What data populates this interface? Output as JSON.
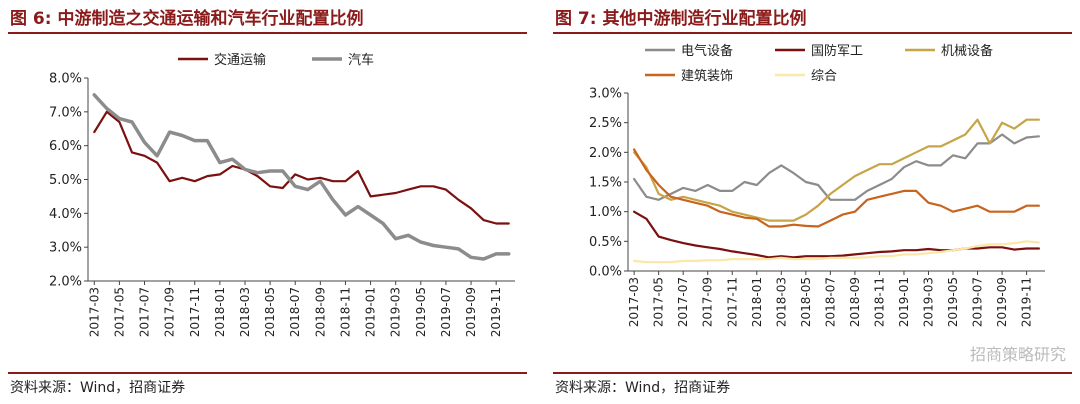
{
  "left": {
    "title": "图 6:  中游制造之交通运输和汽车行业配置比例",
    "source": "资料来源：Wind，招商证券",
    "chart_data": {
      "type": "line",
      "title": "",
      "xlabel": "",
      "ylabel": "",
      "y_format": "1dp_percent",
      "x": [
        "2017-03",
        "2017-04",
        "2017-05",
        "2017-06",
        "2017-07",
        "2017-08",
        "2017-09",
        "2017-10",
        "2017-11",
        "2017-12",
        "2018-01",
        "2018-02",
        "2018-03",
        "2018-04",
        "2018-05",
        "2018-06",
        "2018-07",
        "2018-08",
        "2018-09",
        "2018-10",
        "2018-11",
        "2018-12",
        "2019-01",
        "2019-02",
        "2019-03",
        "2019-04",
        "2019-05",
        "2019-06",
        "2019-07",
        "2019-08",
        "2019-09",
        "2019-10",
        "2019-11",
        "2019-12"
      ],
      "x_tick_labels": [
        "2017-03",
        "2017-05",
        "2017-07",
        "2017-09",
        "2017-11",
        "2018-01",
        "2018-03",
        "2018-05",
        "2018-07",
        "2018-09",
        "2018-11",
        "2019-01",
        "2019-03",
        "2019-05",
        "2019-07",
        "2019-09",
        "2019-11"
      ],
      "ylim": [
        2.0,
        8.0
      ],
      "y_ticks": [
        2.0,
        3.0,
        4.0,
        5.0,
        6.0,
        7.0,
        8.0
      ],
      "legend_position": "top-center",
      "series": [
        {
          "name": "交通运输",
          "color": "#7b1010",
          "width": 2.2,
          "values": [
            6.4,
            7.0,
            6.7,
            5.8,
            5.7,
            5.5,
            4.95,
            5.05,
            4.95,
            5.1,
            5.15,
            5.4,
            5.3,
            5.1,
            4.8,
            4.75,
            5.15,
            5.0,
            5.05,
            4.95,
            4.95,
            5.25,
            4.5,
            4.55,
            4.6,
            4.7,
            4.8,
            4.8,
            4.7,
            4.4,
            4.15,
            3.8,
            3.7,
            3.7
          ]
        },
        {
          "name": "汽车",
          "color": "#8c8c8c",
          "width": 3.5,
          "values": [
            7.5,
            7.1,
            6.8,
            6.7,
            6.1,
            5.7,
            6.4,
            6.3,
            6.15,
            6.15,
            5.5,
            5.6,
            5.3,
            5.2,
            5.25,
            5.25,
            4.8,
            4.7,
            4.95,
            4.4,
            3.95,
            4.2,
            3.95,
            3.7,
            3.25,
            3.35,
            3.15,
            3.05,
            3.0,
            2.95,
            2.7,
            2.65,
            2.8,
            2.8
          ]
        }
      ]
    }
  },
  "right": {
    "title": "图 7:  其他中游制造行业配置比例",
    "source": "资料来源：Wind，招商证券",
    "watermark": "招商策略研究",
    "chart_data": {
      "type": "line",
      "title": "",
      "xlabel": "",
      "ylabel": "",
      "y_format": "1dp_percent",
      "x": [
        "2017-03",
        "2017-04",
        "2017-05",
        "2017-06",
        "2017-07",
        "2017-08",
        "2017-09",
        "2017-10",
        "2017-11",
        "2017-12",
        "2018-01",
        "2018-02",
        "2018-03",
        "2018-04",
        "2018-05",
        "2018-06",
        "2018-07",
        "2018-08",
        "2018-09",
        "2018-10",
        "2018-11",
        "2018-12",
        "2019-01",
        "2019-02",
        "2019-03",
        "2019-04",
        "2019-05",
        "2019-06",
        "2019-07",
        "2019-08",
        "2019-09",
        "2019-10",
        "2019-11",
        "2019-12"
      ],
      "x_tick_labels": [
        "2017-03",
        "2017-05",
        "2017-07",
        "2017-09",
        "2017-11",
        "2018-01",
        "2018-03",
        "2018-05",
        "2018-07",
        "2018-09",
        "2018-11",
        "2019-01",
        "2019-03",
        "2019-05",
        "2019-07",
        "2019-09",
        "2019-11"
      ],
      "ylim": [
        0.0,
        3.0
      ],
      "y_ticks": [
        0.0,
        0.5,
        1.0,
        1.5,
        2.0,
        2.5,
        3.0
      ],
      "legend_position": "top",
      "series": [
        {
          "name": "电气设备",
          "color": "#8c8c8c",
          "width": 2.2,
          "values": [
            1.55,
            1.25,
            1.2,
            1.3,
            1.4,
            1.35,
            1.45,
            1.35,
            1.35,
            1.5,
            1.45,
            1.65,
            1.78,
            1.65,
            1.5,
            1.45,
            1.2,
            1.2,
            1.2,
            1.35,
            1.45,
            1.55,
            1.75,
            1.85,
            1.78,
            1.78,
            1.95,
            1.9,
            2.15,
            2.15,
            2.3,
            2.15,
            2.25,
            2.27
          ]
        },
        {
          "name": "国防军工",
          "color": "#7b1010",
          "width": 2.2,
          "values": [
            1.0,
            0.88,
            0.58,
            0.52,
            0.47,
            0.43,
            0.4,
            0.37,
            0.33,
            0.3,
            0.27,
            0.23,
            0.25,
            0.23,
            0.25,
            0.25,
            0.25,
            0.26,
            0.28,
            0.3,
            0.32,
            0.33,
            0.35,
            0.35,
            0.37,
            0.35,
            0.35,
            0.38,
            0.38,
            0.4,
            0.4,
            0.36,
            0.38,
            0.38
          ]
        },
        {
          "name": "机械设备",
          "color": "#c8a448",
          "width": 2.2,
          "values": [
            2.0,
            1.75,
            1.3,
            1.2,
            1.25,
            1.2,
            1.15,
            1.1,
            1.0,
            0.95,
            0.9,
            0.85,
            0.85,
            0.85,
            0.95,
            1.1,
            1.3,
            1.45,
            1.6,
            1.7,
            1.8,
            1.8,
            1.9,
            2.0,
            2.1,
            2.1,
            2.2,
            2.3,
            2.55,
            2.15,
            2.5,
            2.4,
            2.55,
            2.55
          ]
        },
        {
          "name": "建筑装饰",
          "color": "#c8641e",
          "width": 2.2,
          "values": [
            2.05,
            1.7,
            1.45,
            1.25,
            1.2,
            1.15,
            1.1,
            1.0,
            0.95,
            0.9,
            0.88,
            0.75,
            0.75,
            0.78,
            0.76,
            0.75,
            0.85,
            0.95,
            1.0,
            1.2,
            1.25,
            1.3,
            1.35,
            1.35,
            1.15,
            1.1,
            1.0,
            1.05,
            1.1,
            1.0,
            1.0,
            1.0,
            1.1,
            1.1
          ]
        },
        {
          "name": "综合",
          "color": "#fbe7a8",
          "width": 2.2,
          "values": [
            0.17,
            0.15,
            0.15,
            0.15,
            0.17,
            0.17,
            0.18,
            0.18,
            0.2,
            0.2,
            0.2,
            0.2,
            0.22,
            0.2,
            0.2,
            0.2,
            0.22,
            0.22,
            0.22,
            0.23,
            0.25,
            0.25,
            0.28,
            0.28,
            0.3,
            0.32,
            0.35,
            0.38,
            0.42,
            0.45,
            0.45,
            0.47,
            0.5,
            0.48
          ]
        }
      ]
    }
  }
}
